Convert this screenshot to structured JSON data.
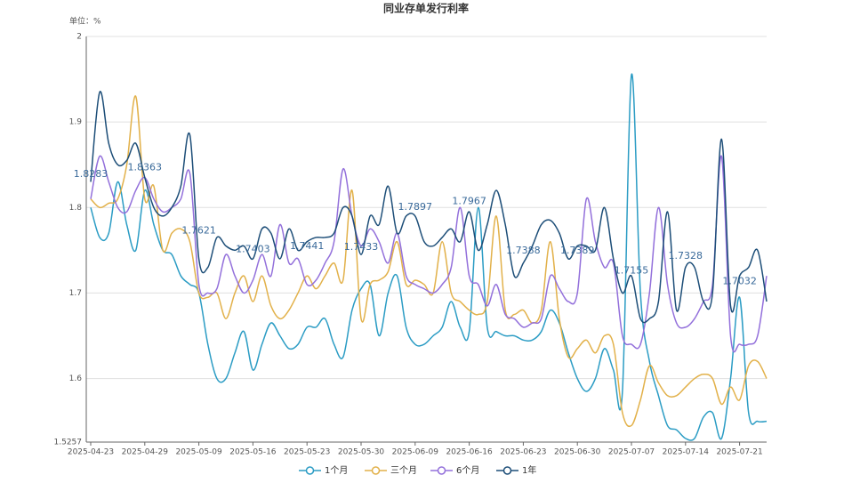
{
  "chart_data": {
    "type": "line",
    "title": "同业存单发行利率",
    "y_axis_label": "单位：%",
    "categories": [
      "2025-04-23",
      null,
      null,
      null,
      null,
      null,
      "2025-04-29",
      null,
      null,
      null,
      null,
      null,
      "2025-05-09",
      null,
      null,
      null,
      null,
      null,
      "2025-05-16",
      null,
      null,
      null,
      null,
      null,
      "2025-05-23",
      null,
      null,
      null,
      null,
      null,
      "2025-05-30",
      null,
      null,
      null,
      null,
      null,
      "2025-06-09",
      null,
      null,
      null,
      null,
      null,
      "2025-06-16",
      null,
      null,
      null,
      null,
      null,
      "2025-06-23",
      null,
      null,
      null,
      null,
      null,
      "2025-06-30",
      null,
      null,
      null,
      null,
      null,
      "2025-07-07",
      null,
      null,
      null,
      null,
      null,
      "2025-07-14",
      null,
      null,
      null,
      null,
      null,
      "2025-07-21",
      null,
      null,
      null
    ],
    "series": [
      {
        "name": "1个月",
        "color": "#2b9cc4",
        "values": [
          1.8,
          1.765,
          1.77,
          1.83,
          1.78,
          1.75,
          1.82,
          1.78,
          1.75,
          1.745,
          1.72,
          1.71,
          1.7,
          1.64,
          1.6,
          1.6,
          1.63,
          1.655,
          1.61,
          1.64,
          1.665,
          1.65,
          1.635,
          1.64,
          1.66,
          1.66,
          1.67,
          1.64,
          1.625,
          1.68,
          1.705,
          1.71,
          1.65,
          1.7,
          1.72,
          1.66,
          1.64,
          1.64,
          1.65,
          1.66,
          1.69,
          1.66,
          1.655,
          1.8,
          1.66,
          1.655,
          1.65,
          1.65,
          1.645,
          1.645,
          1.655,
          1.68,
          1.665,
          1.63,
          1.6,
          1.585,
          1.6,
          1.635,
          1.61,
          1.585,
          1.955,
          1.7,
          1.62,
          1.58,
          1.545,
          1.54,
          1.53,
          1.53,
          1.555,
          1.56,
          1.53,
          1.6,
          1.695,
          1.56,
          1.55,
          1.55
        ]
      },
      {
        "name": "三个月",
        "color": "#e2b14a",
        "values": [
          1.81,
          1.8,
          1.805,
          1.81,
          1.85,
          1.93,
          1.81,
          1.825,
          1.75,
          1.77,
          1.775,
          1.76,
          1.7,
          1.695,
          1.7,
          1.67,
          1.7,
          1.72,
          1.69,
          1.72,
          1.685,
          1.67,
          1.68,
          1.7,
          1.72,
          1.705,
          1.72,
          1.735,
          1.715,
          1.82,
          1.67,
          1.71,
          1.715,
          1.725,
          1.76,
          1.71,
          1.715,
          1.71,
          1.7,
          1.76,
          1.7,
          1.69,
          1.68,
          1.675,
          1.69,
          1.79,
          1.68,
          1.675,
          1.68,
          1.665,
          1.68,
          1.76,
          1.67,
          1.625,
          1.635,
          1.645,
          1.63,
          1.65,
          1.64,
          1.56,
          1.545,
          1.575,
          1.615,
          1.595,
          1.58,
          1.58,
          1.59,
          1.6,
          1.605,
          1.6,
          1.57,
          1.59,
          1.575,
          1.615,
          1.62,
          1.6
        ]
      },
      {
        "name": "6个月",
        "color": "#9370db",
        "values": [
          1.81,
          1.86,
          1.83,
          1.8,
          1.795,
          1.82,
          1.835,
          1.81,
          1.795,
          1.8,
          1.81,
          1.84,
          1.71,
          1.7,
          1.705,
          1.745,
          1.72,
          1.7,
          1.715,
          1.745,
          1.72,
          1.78,
          1.735,
          1.74,
          1.71,
          1.715,
          1.735,
          1.76,
          1.845,
          1.79,
          1.755,
          1.775,
          1.76,
          1.735,
          1.77,
          1.72,
          1.71,
          1.705,
          1.7,
          1.71,
          1.73,
          1.8,
          1.72,
          1.71,
          1.685,
          1.71,
          1.675,
          1.67,
          1.66,
          1.665,
          1.67,
          1.72,
          1.705,
          1.69,
          1.7,
          1.81,
          1.76,
          1.73,
          1.735,
          1.65,
          1.64,
          1.64,
          1.7,
          1.8,
          1.71,
          1.665,
          1.66,
          1.67,
          1.69,
          1.71,
          1.86,
          1.65,
          1.64,
          1.64,
          1.65,
          1.72
        ]
      },
      {
        "name": "1年",
        "color": "#1d4e78",
        "values": [
          1.83,
          1.935,
          1.875,
          1.85,
          1.855,
          1.875,
          1.835,
          1.8,
          1.79,
          1.8,
          1.825,
          1.885,
          1.74,
          1.73,
          1.765,
          1.755,
          1.75,
          1.755,
          1.74,
          1.775,
          1.77,
          1.74,
          1.775,
          1.75,
          1.76,
          1.765,
          1.765,
          1.77,
          1.8,
          1.79,
          1.745,
          1.79,
          1.78,
          1.825,
          1.77,
          1.79,
          1.79,
          1.76,
          1.755,
          1.765,
          1.775,
          1.76,
          1.795,
          1.75,
          1.78,
          1.82,
          1.78,
          1.72,
          1.735,
          1.755,
          1.78,
          1.785,
          1.77,
          1.74,
          1.755,
          1.755,
          1.75,
          1.8,
          1.74,
          1.7,
          1.72,
          1.67,
          1.67,
          1.69,
          1.795,
          1.68,
          1.73,
          1.73,
          1.69,
          1.7,
          1.88,
          1.685,
          1.72,
          1.73,
          1.75,
          1.69
        ]
      }
    ],
    "annotations": [
      {
        "category": "2025-04-23",
        "value": 1.8283
      },
      {
        "category": "2025-04-29",
        "value": 1.8363
      },
      {
        "category": "2025-05-09",
        "value": 1.7621
      },
      {
        "category": "2025-05-16",
        "value": 1.7403
      },
      {
        "category": "2025-05-23",
        "value": 1.7441
      },
      {
        "category": "2025-05-30",
        "value": 1.7433
      },
      {
        "category": "2025-06-09",
        "value": 1.7897
      },
      {
        "category": "2025-06-16",
        "value": 1.7967
      },
      {
        "category": "2025-06-23",
        "value": 1.7388
      },
      {
        "category": "2025-06-30",
        "value": 1.7389
      },
      {
        "category": "2025-07-07",
        "value": 1.7155
      },
      {
        "category": "2025-07-14",
        "value": 1.7328
      },
      {
        "category": "2025-07-21",
        "value": 1.7032
      }
    ],
    "ylim": [
      1.5257,
      2
    ],
    "yticks": [
      1.5257,
      1.6,
      1.7,
      1.8,
      1.9,
      2
    ],
    "grid": true,
    "smooth": true,
    "legend": "bottom"
  }
}
